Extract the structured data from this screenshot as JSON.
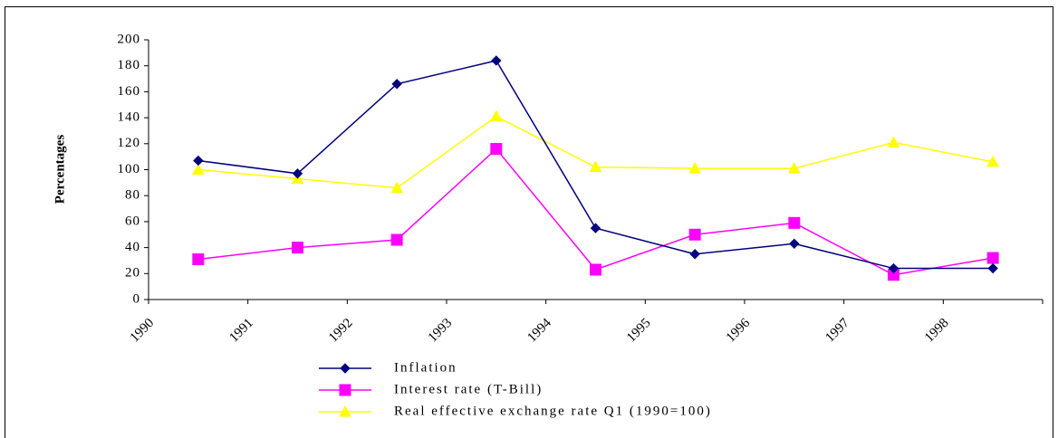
{
  "chart_data": {
    "type": "line",
    "y_label": "Percentages",
    "categories": [
      "1990",
      "1991",
      "1992",
      "1993",
      "1994",
      "1995",
      "1996",
      "1997",
      "1998"
    ],
    "series": [
      {
        "name": "Inflation",
        "color": "#000080",
        "marker": "diamond",
        "values": [
          107,
          97,
          166,
          184,
          55,
          35,
          43,
          24,
          24
        ]
      },
      {
        "name": "Interest rate (T-Bill)",
        "color": "#ff00ff",
        "marker": "square",
        "values": [
          31,
          40,
          46,
          116,
          23,
          50,
          59,
          19,
          32
        ]
      },
      {
        "name": "Real effective exchange rate Q1 (1990=100)",
        "color": "#ffff00",
        "marker": "triangle",
        "values": [
          100,
          93,
          86,
          141,
          102,
          101,
          101,
          121,
          106
        ]
      }
    ],
    "ylim": [
      0,
      200
    ],
    "yticks": [
      0,
      20,
      40,
      60,
      80,
      100,
      120,
      140,
      160,
      180,
      200
    ]
  }
}
